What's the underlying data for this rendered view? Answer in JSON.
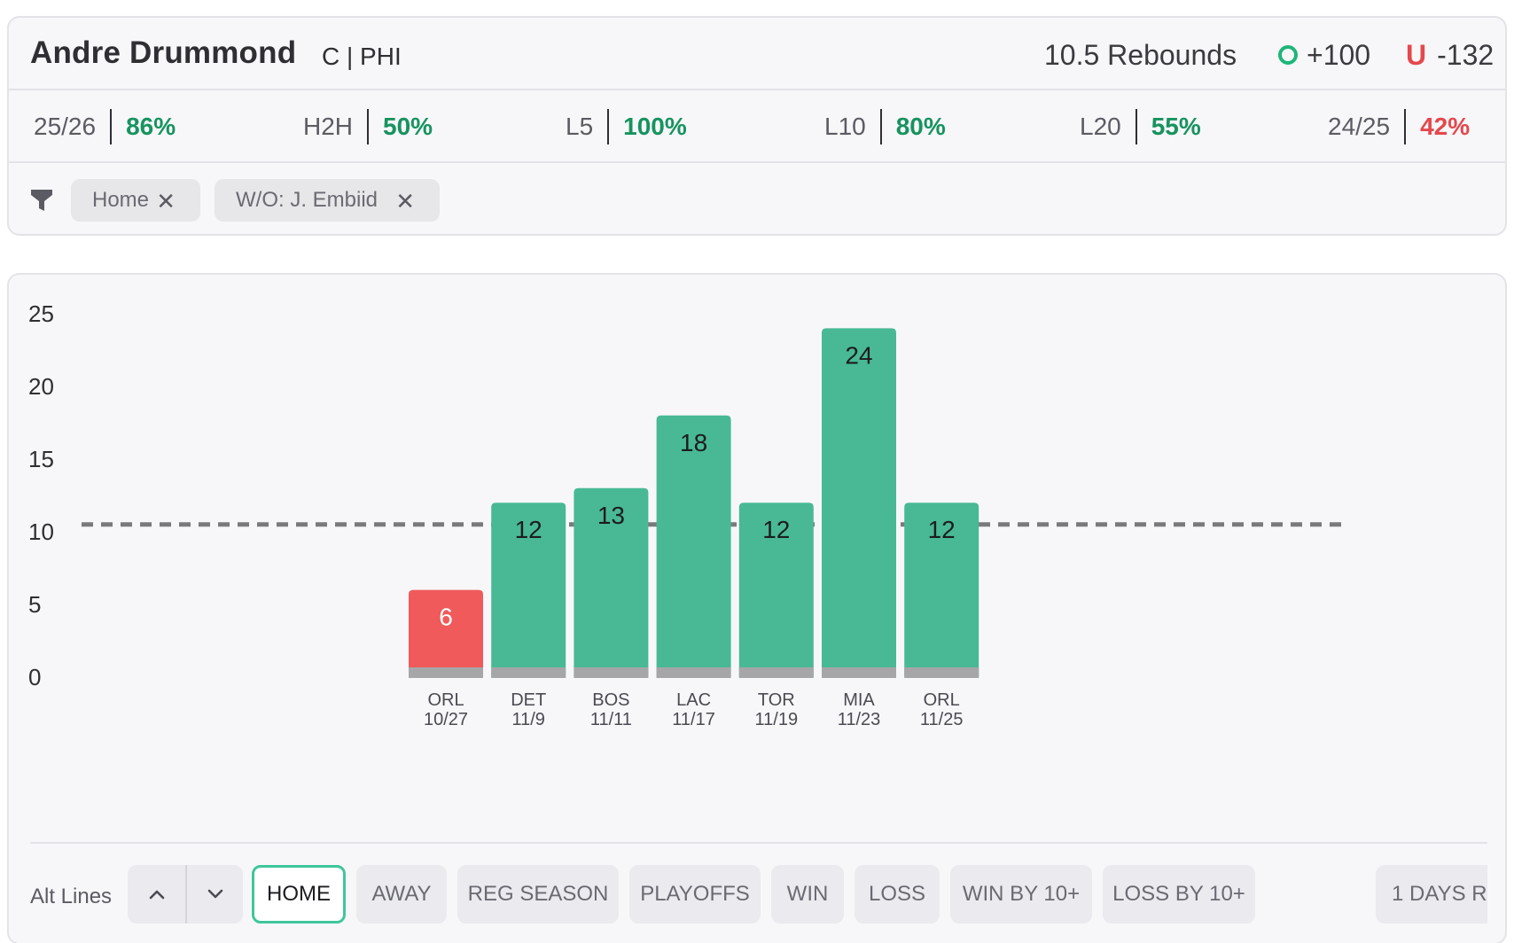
{
  "header": {
    "player_name": "Andre Drummond",
    "position_team": "C | PHI",
    "prop_line": "10.5 Rebounds",
    "over_odds": "+100",
    "under_label": "U",
    "under_odds": "-132"
  },
  "stats": [
    {
      "label": "25/26",
      "value": "86%",
      "color": "green"
    },
    {
      "label": "H2H",
      "value": "50%",
      "color": "green"
    },
    {
      "label": "L5",
      "value": "100%",
      "color": "green"
    },
    {
      "label": "L10",
      "value": "80%",
      "color": "green"
    },
    {
      "label": "L20",
      "value": "55%",
      "color": "green"
    },
    {
      "label": "24/25",
      "value": "42%",
      "color": "red"
    }
  ],
  "filters": {
    "chips": [
      "Home",
      "W/O: J. Embiid"
    ],
    "remove_symbol": "✕"
  },
  "colors": {
    "over": "#48b994",
    "under": "#f05a5a",
    "base": "#a6a6a8",
    "line": "#7a7a7e",
    "accent": "#3fc69a"
  },
  "chart_data": {
    "type": "bar",
    "title": "",
    "xlabel": "",
    "ylabel": "",
    "ylim": [
      0,
      25
    ],
    "yticks": [
      0,
      5,
      10,
      15,
      20,
      25
    ],
    "threshold": 10.5,
    "categories": [
      "ORL",
      "DET",
      "BOS",
      "LAC",
      "TOR",
      "MIA",
      "ORL"
    ],
    "dates": [
      "10/27",
      "11/9",
      "11/11",
      "11/17",
      "11/19",
      "11/23",
      "11/25"
    ],
    "values": [
      6,
      12,
      13,
      18,
      12,
      24,
      12
    ]
  },
  "controls": {
    "alt_lines_label": "Alt Lines",
    "up_icon": "chevron-up-icon",
    "down_icon": "chevron-down-icon",
    "tags": [
      "HOME",
      "AWAY",
      "REG SEASON",
      "PLAYOFFS",
      "WIN",
      "LOSS",
      "WIN BY 10+",
      "LOSS BY 10+"
    ],
    "active_tag": "HOME",
    "overflow_tag": "1 DAYS R"
  }
}
